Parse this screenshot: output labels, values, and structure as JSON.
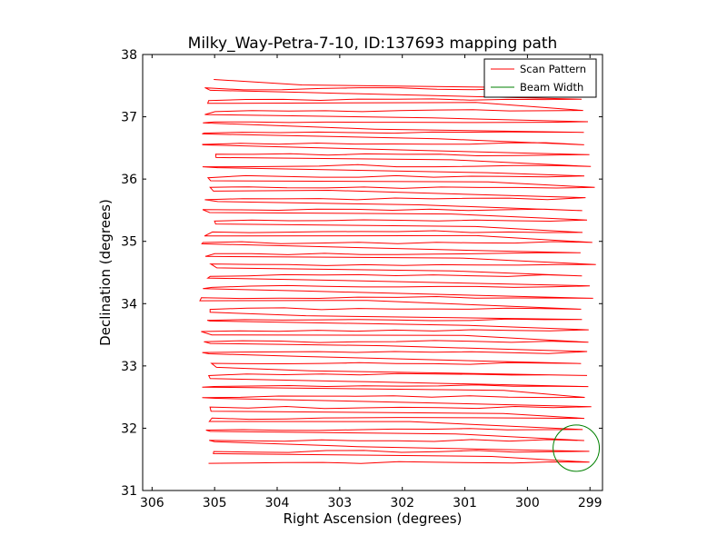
{
  "chart_data": {
    "type": "line",
    "title": "Milky_Way-Petra-7-10, ID:137693 mapping path",
    "xlabel": "Right Ascension (degrees)",
    "ylabel": "Declination (degrees)",
    "xlim": [
      306.15,
      298.8
    ],
    "ylim": [
      31,
      38
    ],
    "x_inverted": true,
    "x_ticks": [
      306,
      305,
      304,
      303,
      302,
      301,
      300,
      299
    ],
    "y_ticks": [
      31,
      32,
      33,
      34,
      35,
      36,
      37,
      38
    ],
    "grid": false,
    "legend_position": "top-right",
    "scan": {
      "ra_east": 305.1,
      "ra_west": 299.1,
      "dec_start": 31.45,
      "dec_end": 37.45,
      "rows": 35
    },
    "beam": {
      "ra": 299.22,
      "dec": 31.68,
      "radius_deg": 0.37
    },
    "series": [
      {
        "name": "Scan Pattern",
        "color": "#ff0000",
        "kind": "line"
      },
      {
        "name": "Beam Width",
        "color": "#008000",
        "kind": "circle"
      }
    ]
  }
}
